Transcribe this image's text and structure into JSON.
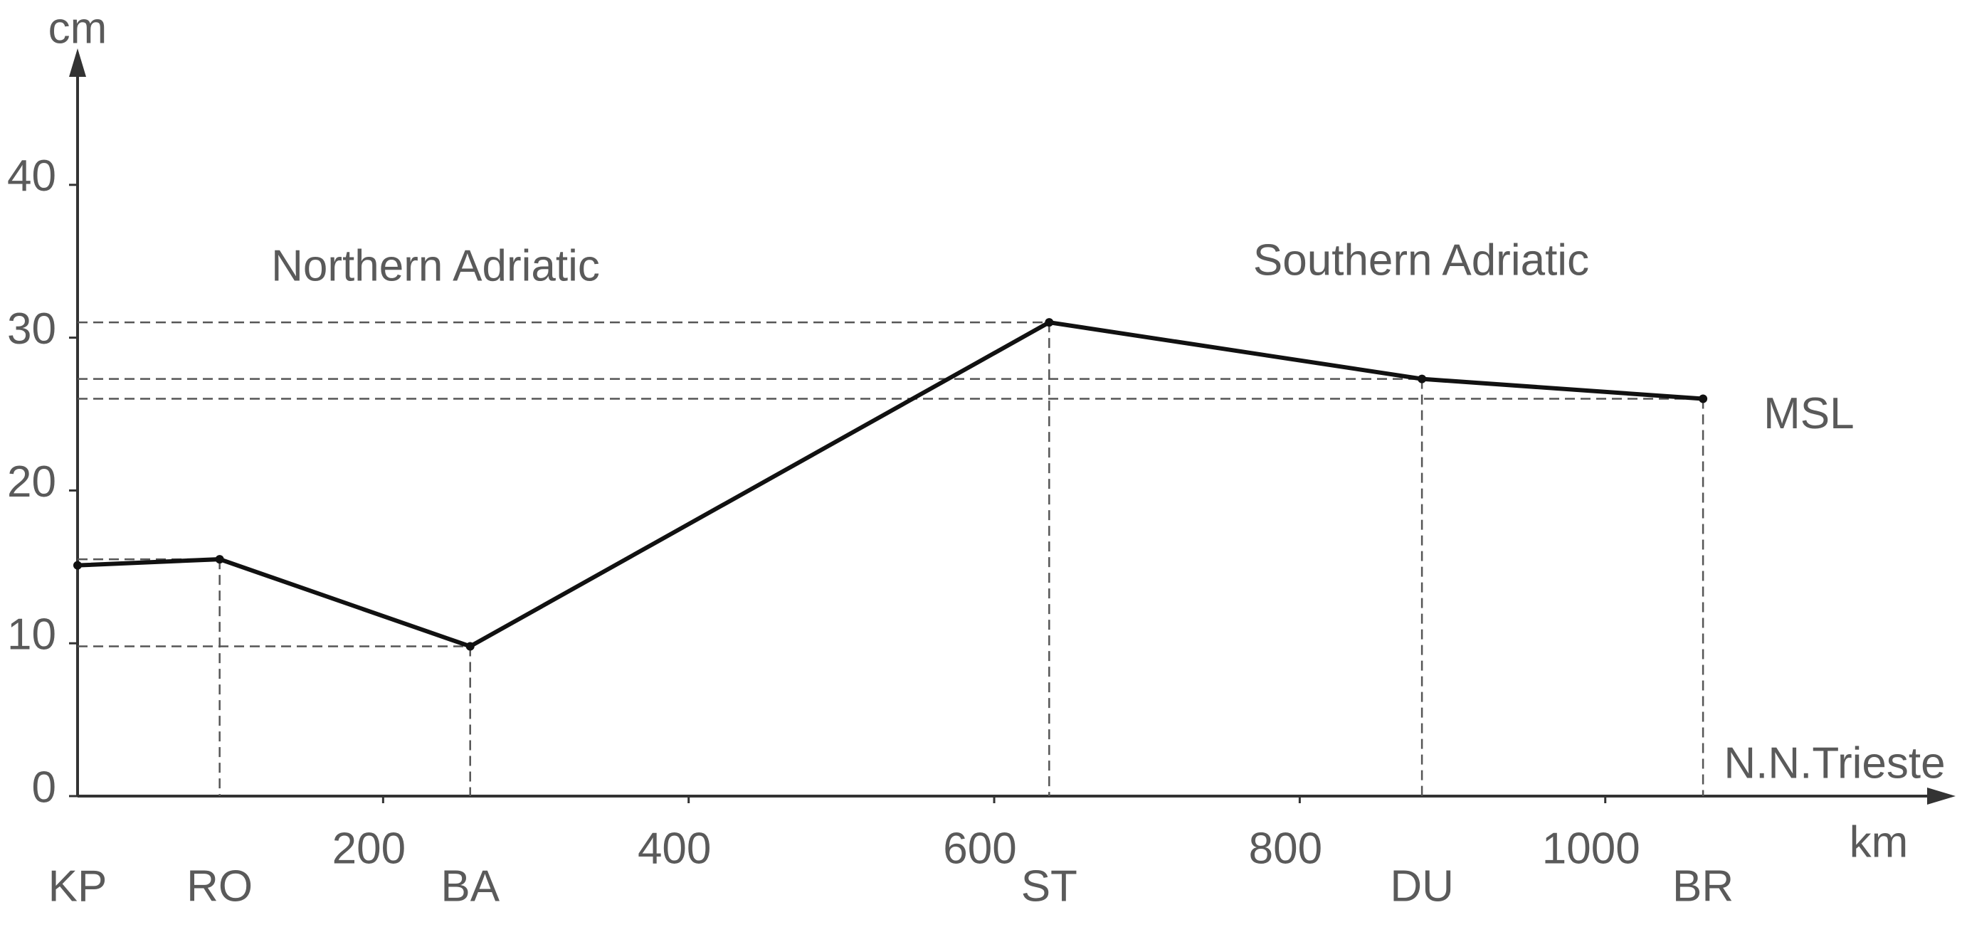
{
  "chart_data": {
    "type": "line",
    "title": "Northern Adriatic",
    "subtitle": "Southern Adriatic",
    "y_label": "cm",
    "x_label": "km",
    "x_axis_name": "N.N.Trieste",
    "x": [
      0,
      93,
      257,
      636,
      880,
      1064
    ],
    "stations": [
      "KP",
      "RO",
      "BA",
      "ST",
      "DU",
      "BR"
    ],
    "series": [
      {
        "name": "MSL",
        "color": "#111111",
        "values": [
          15.1,
          15.5,
          9.8,
          31,
          27.3,
          26
        ]
      }
    ],
    "xlim": [
      0,
      1220
    ],
    "xticks": [
      200,
      400,
      600,
      800,
      1000
    ],
    "ylim": [
      0,
      48
    ],
    "yticks": [
      0,
      10,
      20,
      30,
      40
    ],
    "guides": true
  }
}
